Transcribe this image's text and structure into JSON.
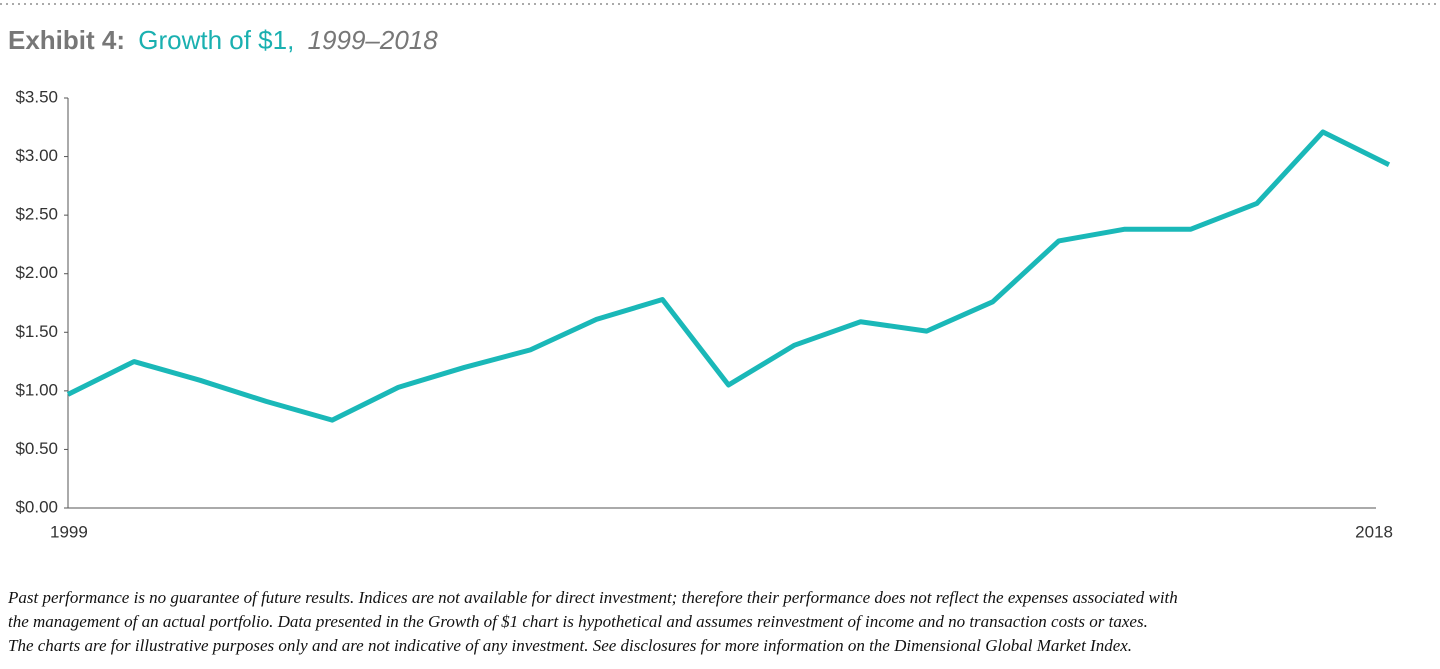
{
  "chart_data": {
    "type": "line",
    "title_prefix": "Exhibit 4:",
    "title": "Growth of $1,",
    "subtitle": "1999–2018",
    "categories": [
      "1999",
      null,
      null,
      null,
      null,
      null,
      null,
      null,
      null,
      null,
      null,
      null,
      null,
      null,
      null,
      null,
      null,
      null,
      null,
      null,
      "2018"
    ],
    "series": [
      {
        "name": "Growth of $1",
        "color": "#1ab8b8",
        "values": [
          0.97,
          1.25,
          1.09,
          0.91,
          0.75,
          1.03,
          1.2,
          1.35,
          1.61,
          1.78,
          1.05,
          1.39,
          1.59,
          1.51,
          1.76,
          2.28,
          2.38,
          2.38,
          2.6,
          3.21,
          2.93
        ]
      }
    ],
    "ylim": [
      0,
      3.5
    ],
    "yticks": [
      {
        "value": 0,
        "label": "$0.00"
      },
      {
        "value": 0.5,
        "label": "$0.50"
      },
      {
        "value": 1,
        "label": "$1.00"
      },
      {
        "value": 1.5,
        "label": "$1.50"
      },
      {
        "value": 2,
        "label": "$2.00"
      },
      {
        "value": 2.5,
        "label": "$2.50"
      },
      {
        "value": 3,
        "label": "$3.00"
      },
      {
        "value": 3.5,
        "label": "$3.50"
      }
    ],
    "grid": false,
    "footnote": [
      "Past performance is no guarantee of future results. Indices are not available for direct investment; therefore their performance does not reflect the expenses associated with",
      "the management of an actual portfolio. Data presented in the Growth of $1 chart is hypothetical and assumes reinvestment of income and no transaction costs or taxes.",
      "The charts are for illustrative purposes only and are not indicative of any investment. See disclosures for more information on the Dimensional Global Market Index."
    ]
  }
}
